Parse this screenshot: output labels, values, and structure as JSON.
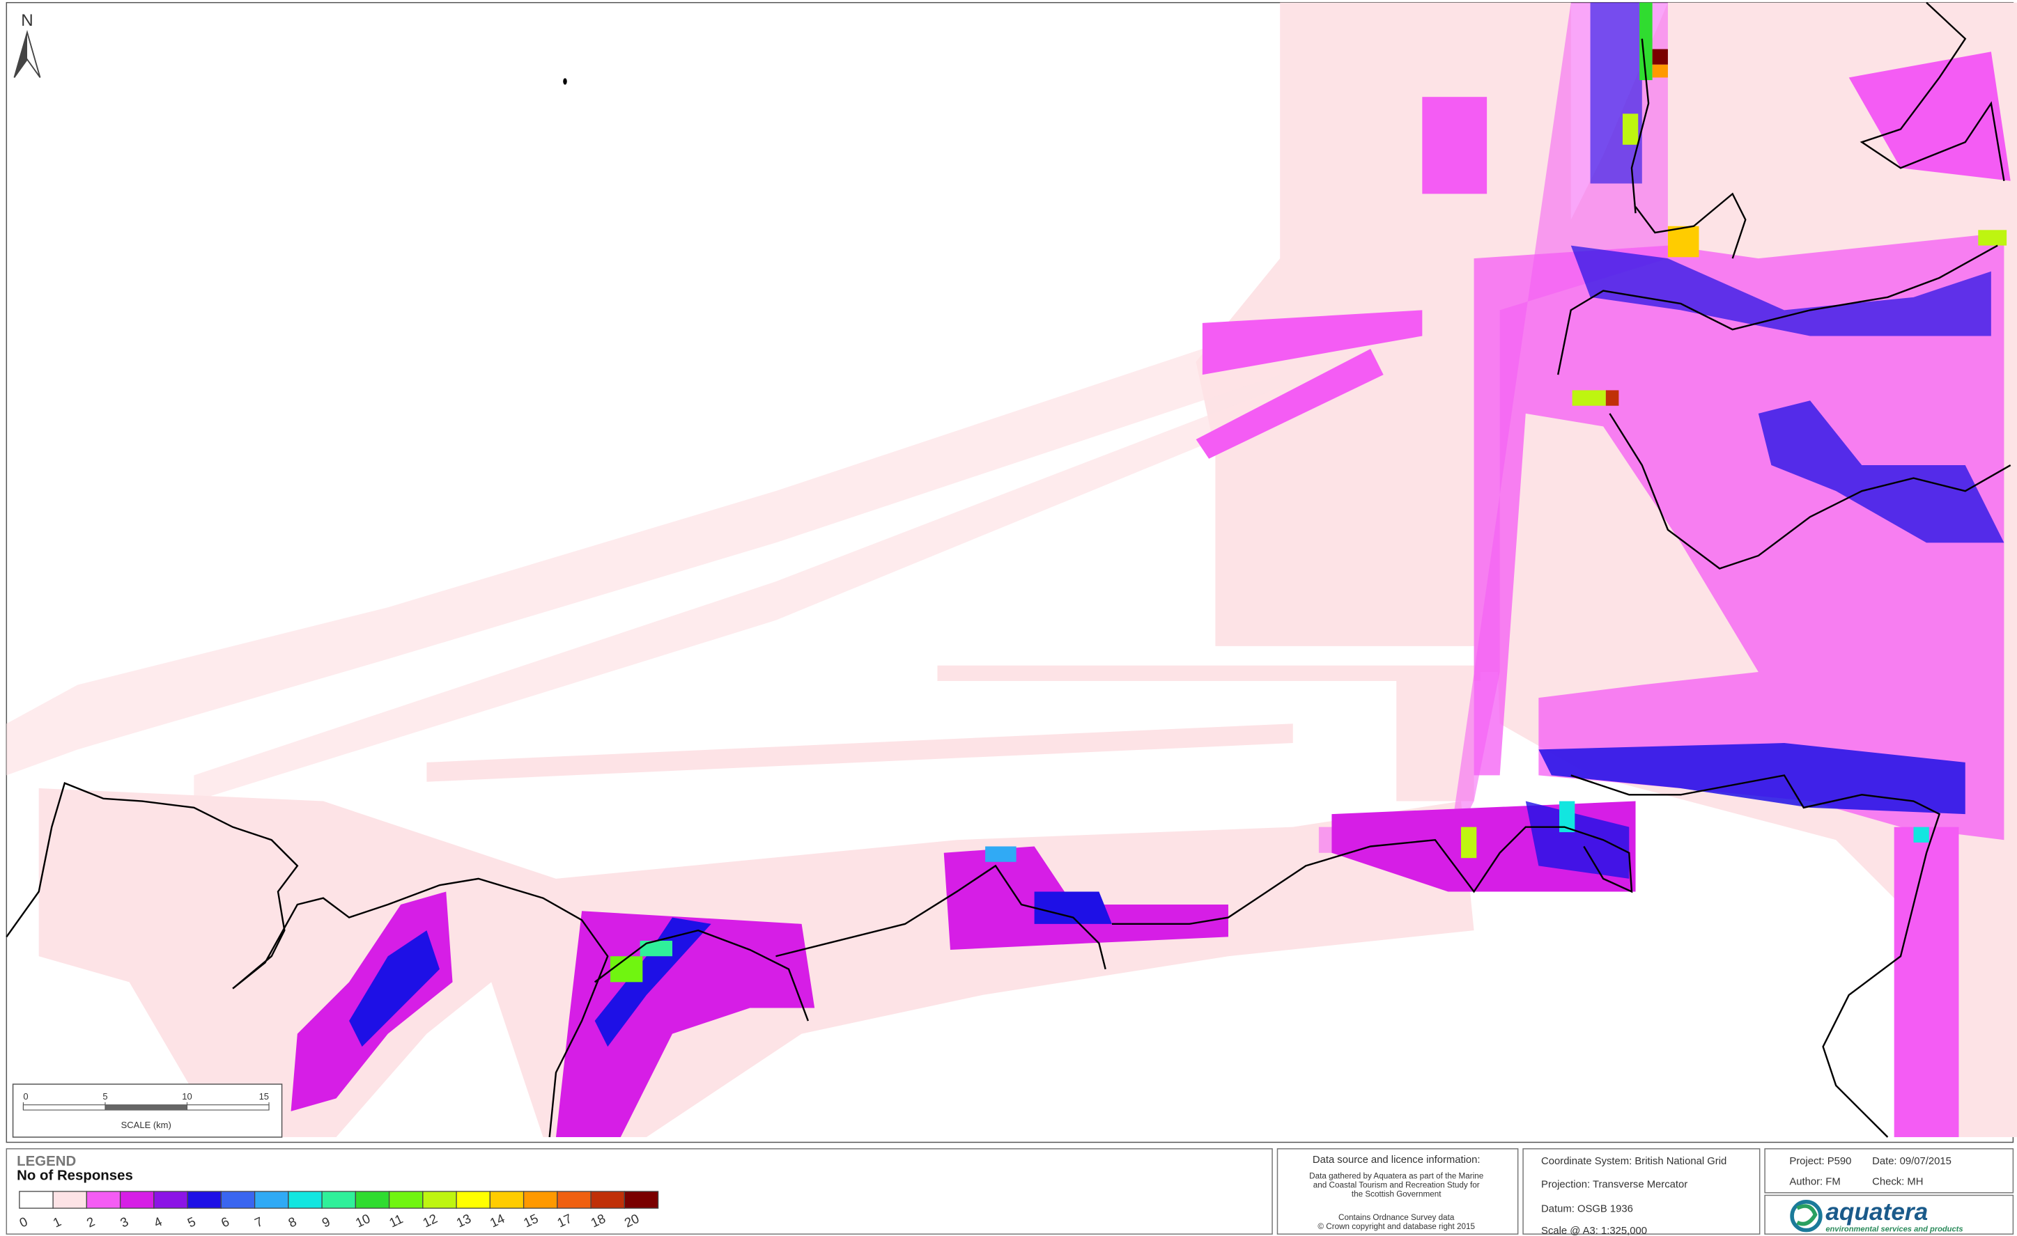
{
  "north": "N",
  "scale_bar": {
    "ticks": [
      0,
      5,
      10,
      15
    ],
    "label": "SCALE (km)"
  },
  "legend": {
    "heading": "LEGEND",
    "title": "No of Responses",
    "classes": [
      {
        "value": 0,
        "color": "#ffffff"
      },
      {
        "value": 1,
        "color": "#fde3e6"
      },
      {
        "value": 2,
        "color": "#f45cf4"
      },
      {
        "value": 3,
        "color": "#d61ee6"
      },
      {
        "value": 4,
        "color": "#8c14e6"
      },
      {
        "value": 5,
        "color": "#1e10e6"
      },
      {
        "value": 6,
        "color": "#3a66f0"
      },
      {
        "value": 7,
        "color": "#30aaf5"
      },
      {
        "value": 8,
        "color": "#12e6e0"
      },
      {
        "value": 9,
        "color": "#30f09a"
      },
      {
        "value": 10,
        "color": "#30dc30"
      },
      {
        "value": 11,
        "color": "#70f510"
      },
      {
        "value": 12,
        "color": "#bef510"
      },
      {
        "value": 13,
        "color": "#ffff00"
      },
      {
        "value": 14,
        "color": "#ffcc00"
      },
      {
        "value": 15,
        "color": "#ff9900"
      },
      {
        "value": 17,
        "color": "#f06010"
      },
      {
        "value": 18,
        "color": "#c03008"
      },
      {
        "value": 20,
        "color": "#7a0000"
      }
    ]
  },
  "data_source": {
    "title": "Data source and licence information:",
    "lines": [
      "Data gathered by Aquatera as part of the Marine",
      "and Coastal Tourism and Recreation Study for",
      "the Scottish Government",
      "Contains Ordnance Survey data",
      "© Crown copyright and database right 2015"
    ]
  },
  "map_info": {
    "coordinate_system": "Coordinate System: British National Grid",
    "projection": "Projection: Transverse Mercator",
    "datum": "Datum: OSGB 1936",
    "scale": "Scale @ A3:  1:325,000"
  },
  "project": {
    "project": "Project: P590",
    "date": "Date: 09/07/2015",
    "author": "Author: FM",
    "check": "Check: MH"
  },
  "logo": {
    "name": "aquatera",
    "tagline": "environmental services and products"
  }
}
